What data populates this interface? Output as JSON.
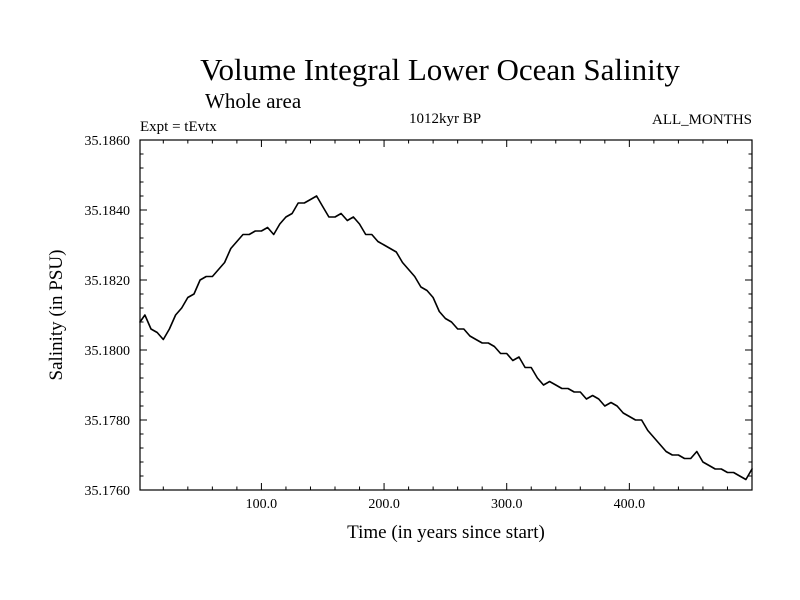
{
  "chart_data": {
    "type": "line",
    "title": "Volume Integral Lower Ocean Salinity",
    "subtitle": "Whole area",
    "annotations": {
      "left": "Expt = tEvtx",
      "center": "1012kyr BP",
      "right": "ALL_MONTHS"
    },
    "xlabel": "Time (in years since start)",
    "ylabel": "Salinity (in PSU)",
    "xlim": [
      1,
      500
    ],
    "ylim": [
      35.176,
      35.186
    ],
    "x_ticks": [
      100,
      200,
      300,
      400
    ],
    "x_tick_labels": [
      "100.0",
      "200.0",
      "300.0",
      "400.0"
    ],
    "y_ticks": [
      35.176,
      35.178,
      35.18,
      35.182,
      35.184,
      35.186
    ],
    "y_tick_labels": [
      "35.1760",
      "35.1780",
      "35.1800",
      "35.1820",
      "35.1840",
      "35.1860"
    ],
    "grid": false,
    "series": [
      {
        "name": "Salinity",
        "color": "#000000",
        "x": [
          1,
          5,
          10,
          15,
          20,
          25,
          30,
          35,
          40,
          45,
          50,
          55,
          60,
          65,
          70,
          75,
          80,
          85,
          90,
          95,
          100,
          105,
          110,
          115,
          120,
          125,
          130,
          135,
          140,
          145,
          150,
          155,
          160,
          165,
          170,
          175,
          180,
          185,
          190,
          195,
          200,
          205,
          210,
          215,
          220,
          225,
          230,
          235,
          240,
          245,
          250,
          255,
          260,
          265,
          270,
          275,
          280,
          285,
          290,
          295,
          300,
          305,
          310,
          315,
          320,
          325,
          330,
          335,
          340,
          345,
          350,
          355,
          360,
          365,
          370,
          375,
          380,
          385,
          390,
          395,
          400,
          405,
          410,
          415,
          420,
          425,
          430,
          435,
          440,
          445,
          450,
          455,
          460,
          465,
          470,
          475,
          480,
          485,
          490,
          495,
          500
        ],
        "y": [
          35.1808,
          35.181,
          35.1806,
          35.1805,
          35.1803,
          35.1806,
          35.181,
          35.1812,
          35.1815,
          35.1816,
          35.182,
          35.1821,
          35.1821,
          35.1823,
          35.1825,
          35.1829,
          35.1831,
          35.1833,
          35.1833,
          35.1834,
          35.1834,
          35.1835,
          35.1833,
          35.1836,
          35.1838,
          35.1839,
          35.1842,
          35.1842,
          35.1843,
          35.1844,
          35.1841,
          35.1838,
          35.1838,
          35.1839,
          35.1837,
          35.1838,
          35.1836,
          35.1833,
          35.1833,
          35.1831,
          35.183,
          35.1829,
          35.1828,
          35.1825,
          35.1823,
          35.1821,
          35.1818,
          35.1817,
          35.1815,
          35.1811,
          35.1809,
          35.1808,
          35.1806,
          35.1806,
          35.1804,
          35.1803,
          35.1802,
          35.1802,
          35.1801,
          35.1799,
          35.1799,
          35.1797,
          35.1798,
          35.1795,
          35.1795,
          35.1792,
          35.179,
          35.1791,
          35.179,
          35.1789,
          35.1789,
          35.1788,
          35.1788,
          35.1786,
          35.1787,
          35.1786,
          35.1784,
          35.1785,
          35.1784,
          35.1782,
          35.1781,
          35.178,
          35.178,
          35.1777,
          35.1775,
          35.1773,
          35.1771,
          35.177,
          35.177,
          35.1769,
          35.1769,
          35.1771,
          35.1768,
          35.1767,
          35.1766,
          35.1766,
          35.1765,
          35.1765,
          35.1764,
          35.1763,
          35.1766
        ]
      }
    ]
  }
}
